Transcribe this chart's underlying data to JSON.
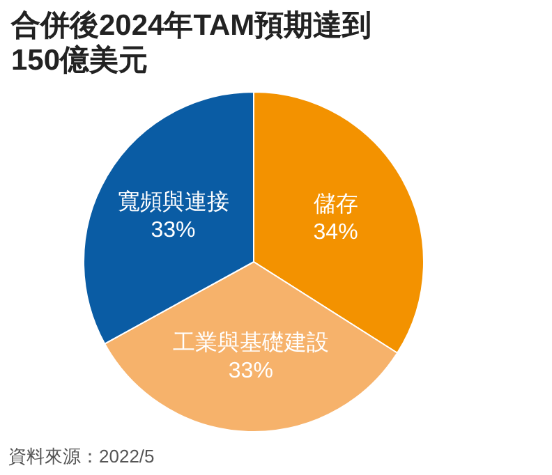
{
  "chart_data": {
    "type": "pie",
    "title": "合併後2024年TAM預期達到150億美元",
    "categories": [
      "儲存",
      "工業與基礎建設",
      "寬頻與連接"
    ],
    "values": [
      34,
      33,
      33
    ],
    "colors": [
      "#f39200",
      "#f6b26b",
      "#0a5ca4"
    ],
    "value_labels": [
      "34%",
      "33%",
      "33%"
    ],
    "annotations": [
      "資料來源：2022/5"
    ]
  }
}
